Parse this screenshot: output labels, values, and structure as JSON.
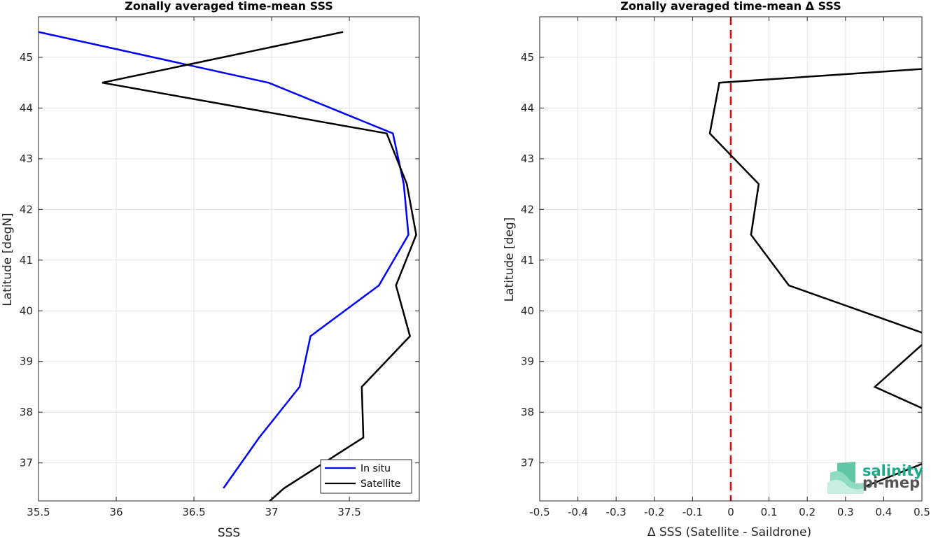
{
  "chart_data": [
    {
      "type": "line",
      "title": "Zonally averaged time-mean SSS",
      "xlabel": "SSS",
      "ylabel": "Latitude [degN]",
      "xlim": [
        35.5,
        37.95
      ],
      "ylim": [
        36.25,
        45.8
      ],
      "xticks": [
        35.5,
        36,
        36.5,
        37,
        37.5
      ],
      "xtick_labels": [
        "35.5",
        "36",
        "36.5",
        "37",
        "37.5"
      ],
      "yticks": [
        37,
        38,
        39,
        40,
        41,
        42,
        43,
        44,
        45
      ],
      "ytick_labels": [
        "37",
        "38",
        "39",
        "40",
        "41",
        "42",
        "43",
        "44",
        "45"
      ],
      "grid": true,
      "legend_position": "bottom-right",
      "series": [
        {
          "name": "In situ",
          "color": "#0000ff",
          "x": [
            35.5,
            36.98,
            37.78,
            37.85,
            37.88,
            37.69,
            37.25,
            37.18,
            36.92,
            36.69
          ],
          "y": [
            45.5,
            44.5,
            43.5,
            42.5,
            41.5,
            40.5,
            39.5,
            38.5,
            37.5,
            36.5
          ]
        },
        {
          "name": "Satellite",
          "color": "#000000",
          "x": [
            37.46,
            35.91,
            37.74,
            37.87,
            37.93,
            37.8,
            37.89,
            37.58,
            37.59,
            37.08,
            36.97
          ],
          "y": [
            45.5,
            44.5,
            43.5,
            42.5,
            41.5,
            40.5,
            39.5,
            38.5,
            37.5,
            36.5,
            36.2
          ]
        }
      ]
    },
    {
      "type": "line",
      "title": "Zonally averaged time-mean Δ SSS",
      "xlabel": "Δ SSS (Satellite - Saildrone)",
      "ylabel": "Latitude [deg]",
      "xlim": [
        -0.5,
        0.5
      ],
      "ylim": [
        36.25,
        45.8
      ],
      "xticks": [
        -0.5,
        -0.4,
        -0.3,
        -0.2,
        -0.1,
        0,
        0.1,
        0.2,
        0.3,
        0.4,
        0.5
      ],
      "xtick_labels": [
        "-0.5",
        "-0.4",
        "-0.3",
        "-0.2",
        "-0.1",
        "0",
        "0.1",
        "0.2",
        "0.3",
        "0.4",
        "0.5"
      ],
      "yticks": [
        37,
        38,
        39,
        40,
        41,
        42,
        43,
        44,
        45
      ],
      "ytick_labels": [
        "37",
        "38",
        "39",
        "40",
        "41",
        "42",
        "43",
        "44",
        "45"
      ],
      "grid": true,
      "reference_line": {
        "x": 0,
        "color": "#ff0000",
        "style": "dashed"
      },
      "series": [
        {
          "color": "#000000",
          "x": [
            0.5,
            -0.03,
            -0.055,
            0.073,
            0.053,
            0.152,
            0.5
          ],
          "y": [
            44.77,
            44.5,
            43.5,
            42.5,
            41.5,
            40.5,
            39.57
          ]
        },
        {
          "color": "#000000",
          "x": [
            0.5,
            0.377,
            0.5
          ],
          "y": [
            39.33,
            38.5,
            38.08
          ]
        },
        {
          "color": "#000000",
          "x": [
            0.5,
            0.34
          ],
          "y": [
            36.98,
            36.5
          ]
        }
      ],
      "logo": {
        "line1": "salinity",
        "line2": "pi-mep"
      }
    }
  ]
}
